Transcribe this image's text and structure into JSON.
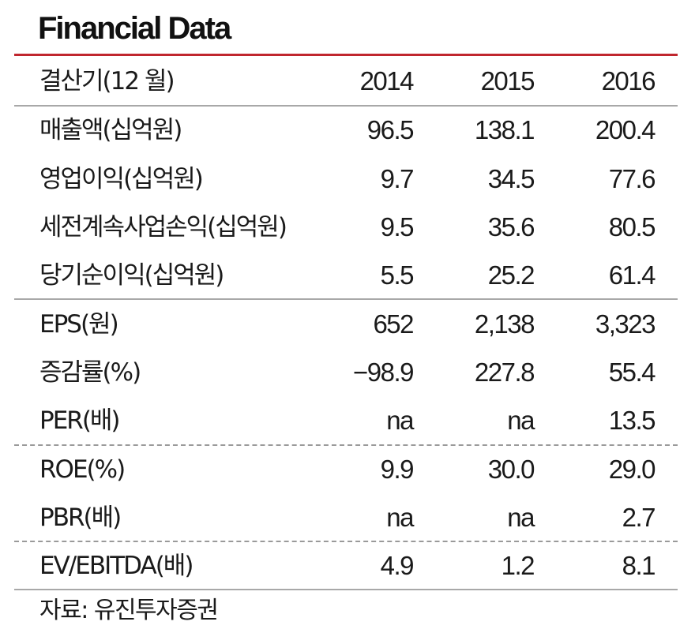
{
  "title": "Financial Data",
  "header": {
    "label": "결산기(12 월)",
    "years": [
      "2014",
      "2015",
      "2016"
    ]
  },
  "rows": [
    {
      "label": "매출액(십억원)",
      "values": [
        "96.5",
        "138.1",
        "200.4"
      ]
    },
    {
      "label": "영업이익(십억원)",
      "values": [
        "9.7",
        "34.5",
        "77.6"
      ]
    },
    {
      "label": "세전계속사업손익(십억원)",
      "values": [
        "9.5",
        "35.6",
        "80.5"
      ]
    },
    {
      "label": "당기순이익(십억원)",
      "values": [
        "5.5",
        "25.2",
        "61.4"
      ]
    },
    {
      "label": "EPS(원)",
      "values": [
        "652",
        "2,138",
        "3,323"
      ]
    },
    {
      "label": "증감률(%)",
      "values": [
        "−98.9",
        "227.8",
        "55.4"
      ]
    },
    {
      "label": "PER(배)",
      "values": [
        "na",
        "na",
        "13.5"
      ]
    },
    {
      "label": "ROE(%)",
      "values": [
        "9.9",
        "30.0",
        "29.0"
      ]
    },
    {
      "label": "PBR(배)",
      "values": [
        "na",
        "na",
        "2.7"
      ]
    },
    {
      "label": "EV/EBITDA(배)",
      "values": [
        "4.9",
        "1.2",
        "8.1"
      ]
    }
  ],
  "source": "자료: 유진투자증권",
  "colors": {
    "accent_rule": "#c0262e",
    "divider": "#a8a8a8",
    "text": "#1a1a1a"
  }
}
